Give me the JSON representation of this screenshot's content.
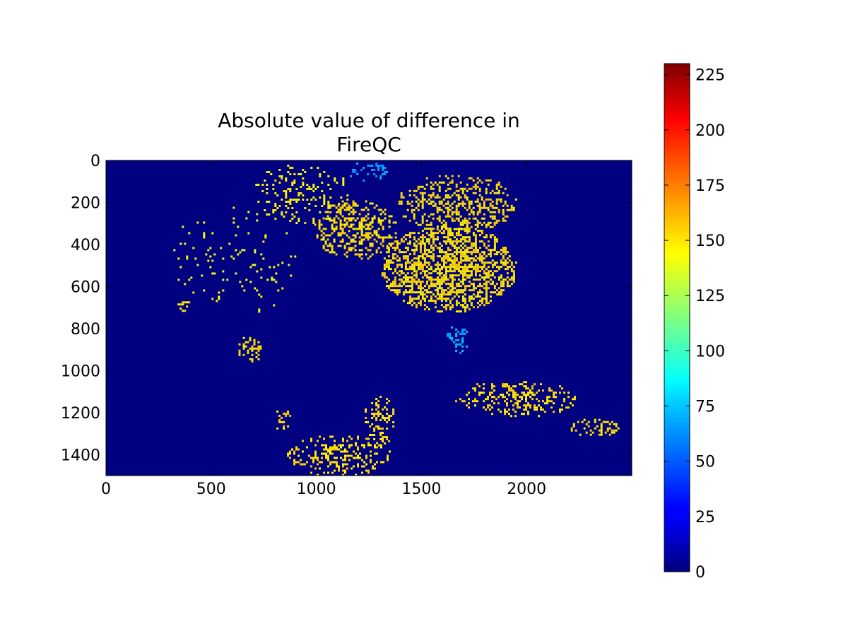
{
  "chart_data": {
    "type": "heatmap",
    "title_lines": [
      "Absolute value of difference in",
      "FireQC"
    ],
    "xlabel": "",
    "ylabel": "",
    "x_range": [
      0,
      2500
    ],
    "y_range": [
      0,
      1500
    ],
    "y_inverted": true,
    "x_ticks": [
      0,
      500,
      1000,
      1500,
      2000
    ],
    "y_ticks": [
      0,
      200,
      400,
      600,
      800,
      1000,
      1200,
      1400
    ],
    "colormap": "jet",
    "colorbar": {
      "range": [
        0,
        230
      ],
      "ticks": [
        0,
        25,
        50,
        75,
        100,
        125,
        150,
        175,
        200,
        225
      ]
    },
    "background_value": 0,
    "regions": [
      {
        "name": "northwest-scattered",
        "x": [
          700,
          1150
        ],
        "y": [
          0,
          300
        ],
        "value": 145,
        "density": 0.18
      },
      {
        "name": "north-central-band",
        "x": [
          980,
          1380
        ],
        "y": [
          180,
          470
        ],
        "value": 150,
        "density": 0.38
      },
      {
        "name": "upper-plume",
        "x": [
          1380,
          1950
        ],
        "y": [
          60,
          340
        ],
        "value": 150,
        "density": 0.35
      },
      {
        "name": "central-dense-mass",
        "x": [
          1300,
          1950
        ],
        "y": [
          300,
          720
        ],
        "value": 150,
        "density": 0.55
      },
      {
        "name": "north-edge-cyan",
        "x": [
          1150,
          1350
        ],
        "y": [
          0,
          100
        ],
        "value": 65,
        "density": 0.25
      },
      {
        "name": "west-faint",
        "x": [
          300,
          900
        ],
        "y": [
          200,
          750
        ],
        "value": 140,
        "density": 0.04
      },
      {
        "name": "west-patch",
        "x": [
          330,
          400
        ],
        "y": [
          640,
          720
        ],
        "value": 150,
        "density": 0.35
      },
      {
        "name": "midwest-patch",
        "x": [
          620,
          740
        ],
        "y": [
          830,
          960
        ],
        "value": 150,
        "density": 0.3
      },
      {
        "name": "east-cyan-patch",
        "x": [
          1610,
          1720
        ],
        "y": [
          770,
          920
        ],
        "value": 70,
        "density": 0.35
      },
      {
        "name": "south-east-band",
        "x": [
          1650,
          2240
        ],
        "y": [
          1040,
          1220
        ],
        "value": 150,
        "density": 0.28
      },
      {
        "name": "far-east-patch",
        "x": [
          2200,
          2450
        ],
        "y": [
          1220,
          1310
        ],
        "value": 150,
        "density": 0.35
      },
      {
        "name": "south-vertical-strip",
        "x": [
          1220,
          1370
        ],
        "y": [
          1110,
          1360
        ],
        "value": 150,
        "density": 0.35
      },
      {
        "name": "south-cluster",
        "x": [
          850,
          1350
        ],
        "y": [
          1300,
          1500
        ],
        "value": 150,
        "density": 0.32
      },
      {
        "name": "south-small",
        "x": [
          790,
          880
        ],
        "y": [
          1180,
          1280
        ],
        "value": 150,
        "density": 0.3
      }
    ]
  }
}
